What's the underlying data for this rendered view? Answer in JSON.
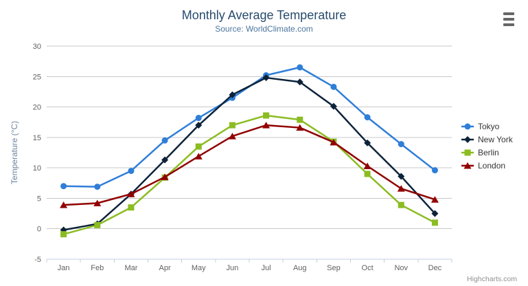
{
  "header": {
    "title": "Monthly Average Temperature",
    "subtitle": "Source: WorldClimate.com"
  },
  "toolbar": {
    "context_menu_icon": "hamburger-icon"
  },
  "credits": {
    "label": "Highcharts.com"
  },
  "colors": {
    "title": "#274b6d",
    "subtitle": "#4d759e",
    "axis_label": "#606060",
    "axis_title": "#6d869f",
    "grid_line": "#c8c8c8",
    "axis_line": "#c0d0e0",
    "legend_text": "#333333",
    "credits_text": "#909090",
    "background": "#ffffff",
    "menu_icon": "#666666"
  },
  "chart_data": {
    "type": "line",
    "title": "Monthly Average Temperature",
    "subtitle": "Source: WorldClimate.com",
    "xlabel": "",
    "ylabel": "Temperature (°C)",
    "ylim": [
      -5,
      30
    ],
    "ytick_step": 5,
    "ytick_labels": [
      "-5",
      "0",
      "5",
      "10",
      "15",
      "20",
      "25",
      "30"
    ],
    "grid": true,
    "legend_position": "right",
    "categories": [
      "Jan",
      "Feb",
      "Mar",
      "Apr",
      "May",
      "Jun",
      "Jul",
      "Aug",
      "Sep",
      "Oct",
      "Nov",
      "Dec"
    ],
    "series": [
      {
        "name": "Tokyo",
        "color": "#2f7ed8",
        "marker": "circle",
        "values": [
          7.0,
          6.9,
          9.5,
          14.5,
          18.2,
          21.5,
          25.2,
          26.5,
          23.3,
          18.3,
          13.9,
          9.6
        ]
      },
      {
        "name": "New York",
        "color": "#0d233a",
        "marker": "diamond",
        "values": [
          -0.2,
          0.8,
          5.7,
          11.3,
          17.0,
          22.0,
          24.8,
          24.1,
          20.1,
          14.1,
          8.6,
          2.5
        ]
      },
      {
        "name": "Berlin",
        "color": "#8bbc21",
        "marker": "square",
        "values": [
          -0.9,
          0.6,
          3.5,
          8.4,
          13.5,
          17.0,
          18.6,
          17.9,
          14.3,
          9.0,
          3.9,
          1.0
        ]
      },
      {
        "name": "London",
        "color": "#910000",
        "marker": "triangle",
        "values": [
          3.9,
          4.2,
          5.7,
          8.5,
          11.9,
          15.2,
          17.0,
          16.6,
          14.2,
          10.3,
          6.6,
          4.8
        ]
      }
    ]
  }
}
